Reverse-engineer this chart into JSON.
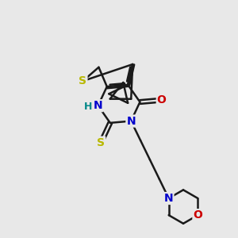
{
  "bg_color": "#e8e8e8",
  "bond_color": "#1a1a1a",
  "bond_width": 1.8,
  "figsize": [
    3.0,
    3.0
  ],
  "dpi": 100,
  "S_color": "#b8b800",
  "N_color": "#0000cc",
  "O_color": "#cc0000",
  "NH_color": "#008888",
  "xlim": [
    0,
    10
  ],
  "ylim": [
    0,
    10
  ]
}
